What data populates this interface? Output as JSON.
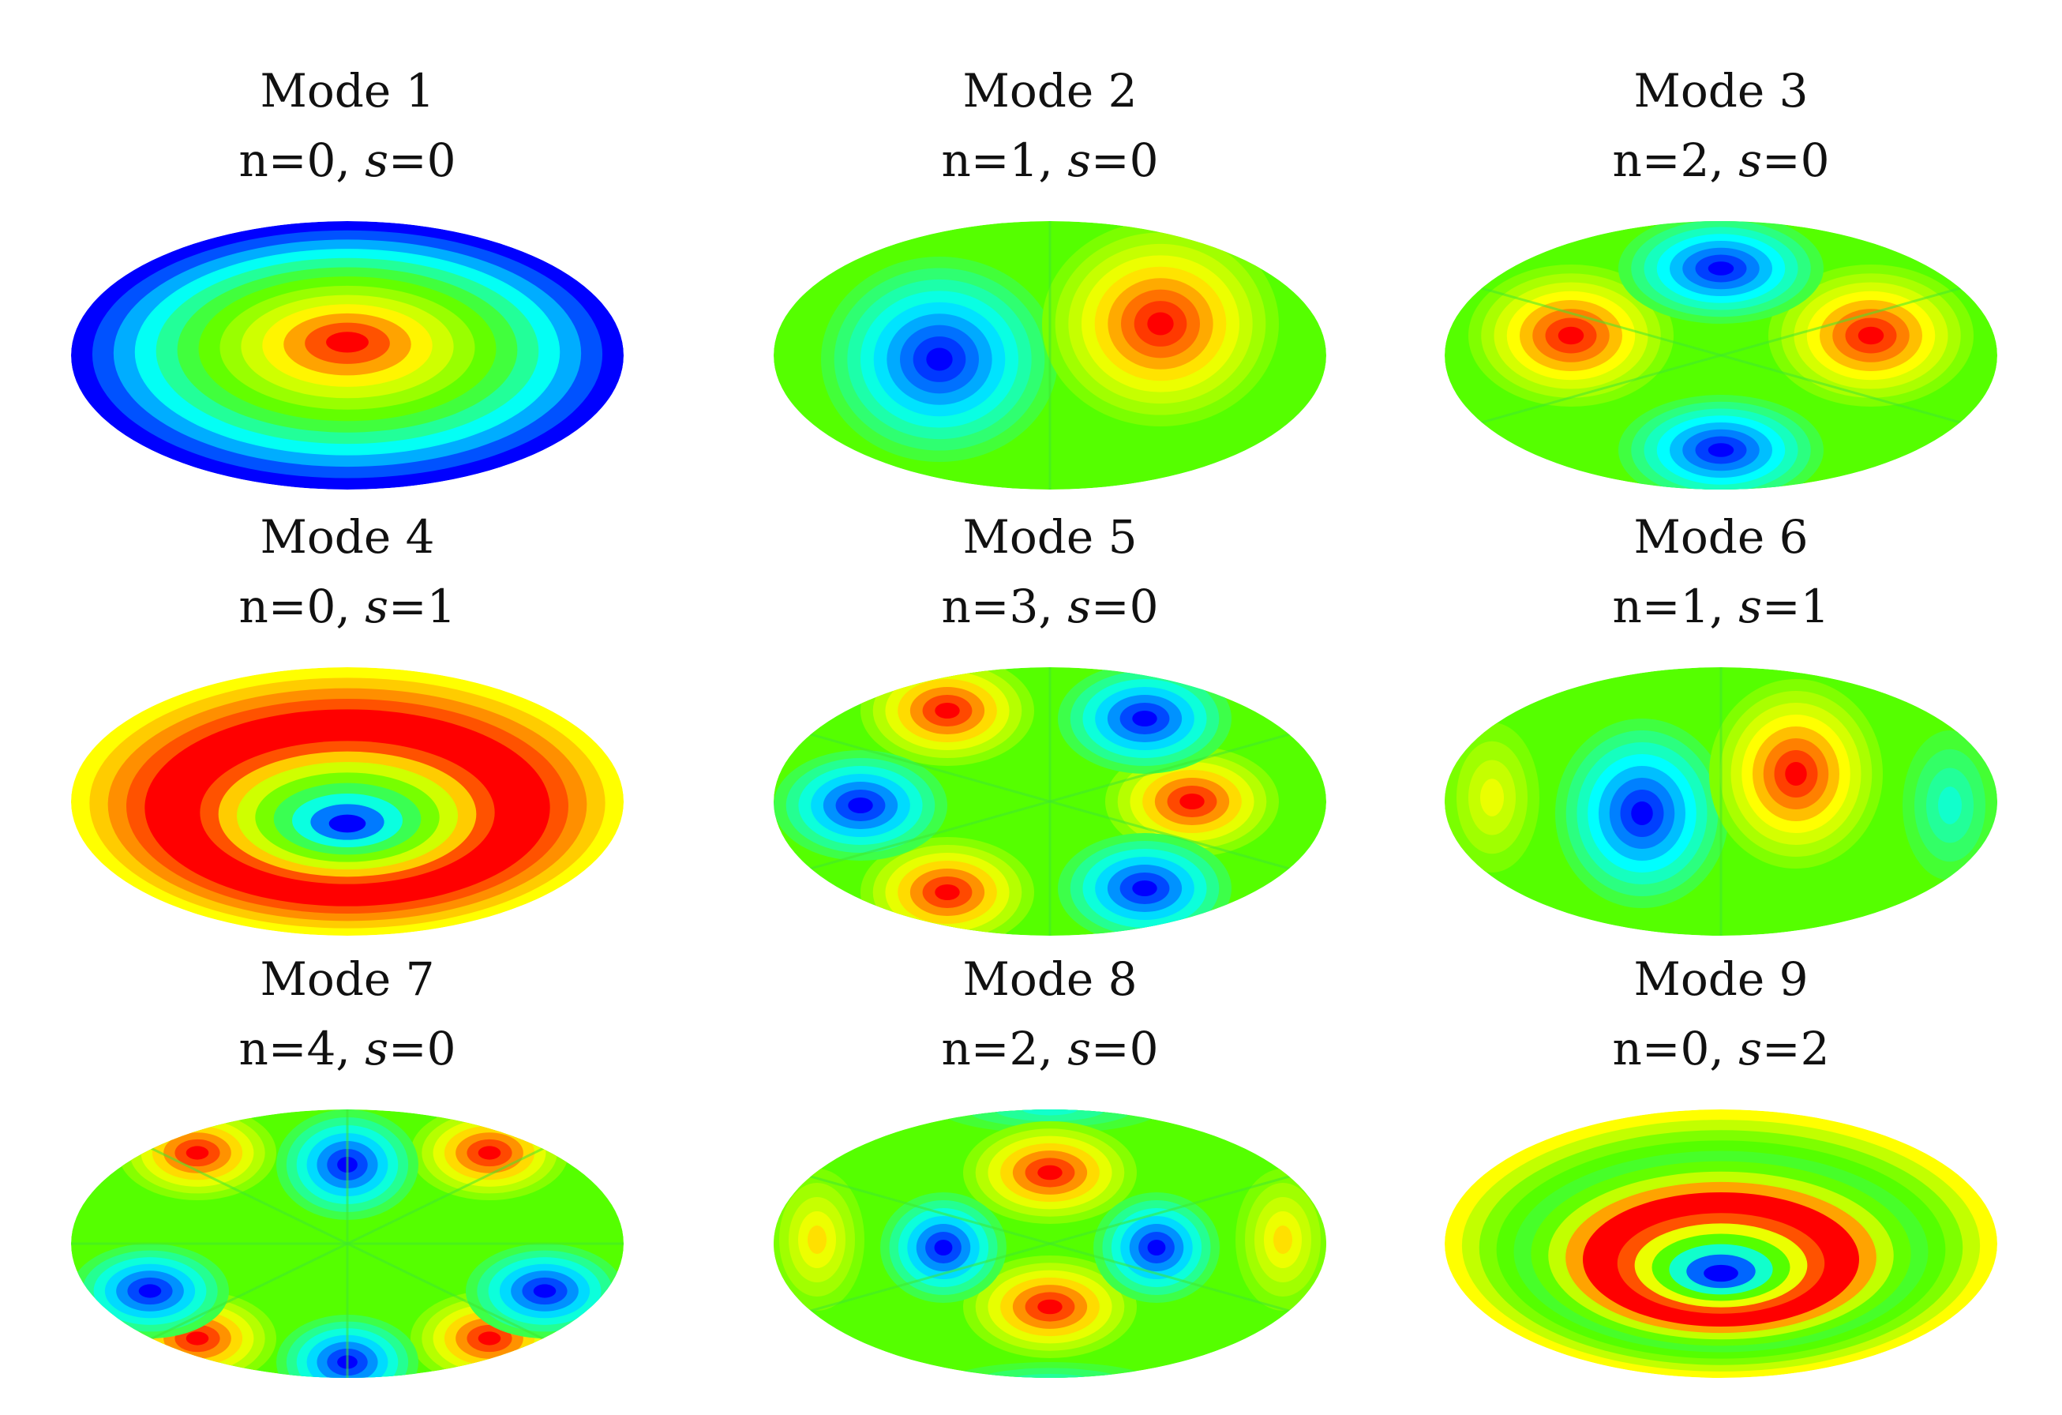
{
  "colors": {
    "blue": "#0000ff",
    "cyan": "#00ffff",
    "green": "#55ff00",
    "yellow": "#ffff00",
    "red": "#ff0000",
    "text": "#111111",
    "background": "#ffffff"
  },
  "colormap": "jet-contour",
  "modes": [
    {
      "title": "Mode 1",
      "n": "0",
      "s": "0",
      "radial_rings": 1,
      "angular_nodes": 0
    },
    {
      "title": "Mode 2",
      "n": "1",
      "s": "0",
      "radial_rings": 1,
      "angular_nodes": 1
    },
    {
      "title": "Mode 3",
      "n": "2",
      "s": "0",
      "radial_rings": 1,
      "angular_nodes": 2
    },
    {
      "title": "Mode 4",
      "n": "0",
      "s": "1",
      "radial_rings": 2,
      "angular_nodes": 0
    },
    {
      "title": "Mode 5",
      "n": "3",
      "s": "0",
      "radial_rings": 1,
      "angular_nodes": 3
    },
    {
      "title": "Mode 6",
      "n": "1",
      "s": "1",
      "radial_rings": 2,
      "angular_nodes": 1
    },
    {
      "title": "Mode 7",
      "n": "4",
      "s": "0",
      "radial_rings": 1,
      "angular_nodes": 4
    },
    {
      "title": "Mode 8",
      "n": "2",
      "s": "0",
      "radial_rings": 1,
      "angular_nodes": 2
    },
    {
      "title": "Mode 9",
      "n": "0",
      "s": "2",
      "radial_rings": 3,
      "angular_nodes": 0
    }
  ]
}
